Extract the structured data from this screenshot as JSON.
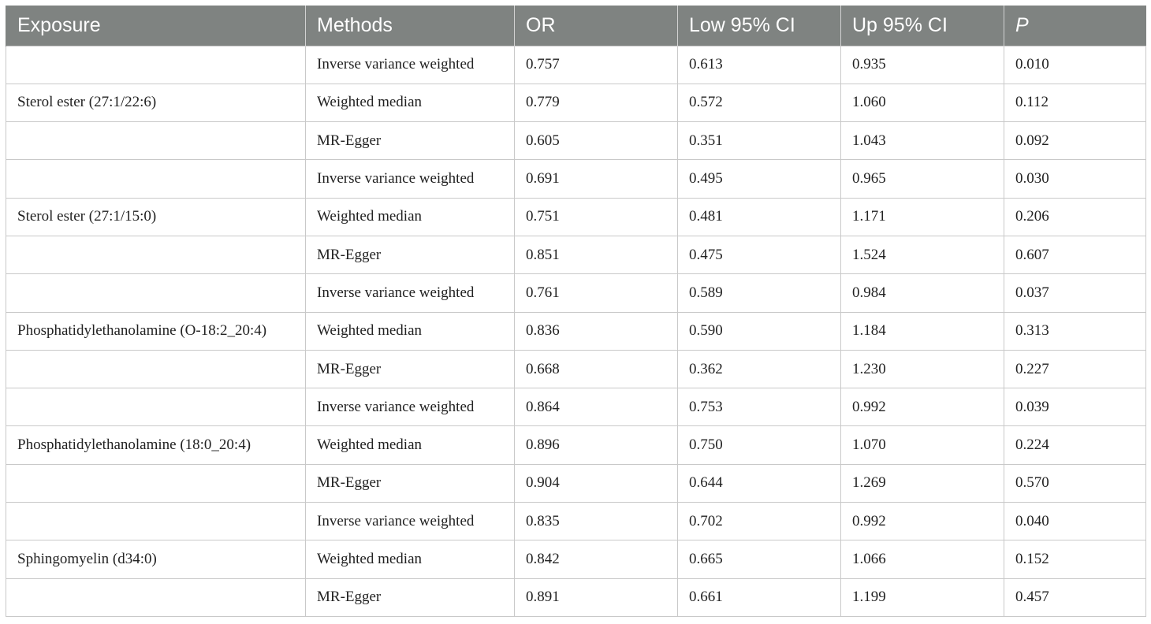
{
  "table": {
    "headers": [
      "Exposure",
      "Methods",
      "OR",
      "Low 95% CI",
      "Up 95% CI",
      "P"
    ],
    "rows": [
      [
        "",
        "Inverse variance weighted",
        "0.757",
        "0.613",
        "0.935",
        "0.010"
      ],
      [
        "Sterol ester (27:1/22:6)",
        "Weighted median",
        "0.779",
        "0.572",
        "1.060",
        "0.112"
      ],
      [
        "",
        "MR-Egger",
        "0.605",
        "0.351",
        "1.043",
        "0.092"
      ],
      [
        "",
        "Inverse variance weighted",
        "0.691",
        "0.495",
        "0.965",
        "0.030"
      ],
      [
        "Sterol ester (27:1/15:0)",
        "Weighted median",
        "0.751",
        "0.481",
        "1.171",
        "0.206"
      ],
      [
        "",
        "MR-Egger",
        "0.851",
        "0.475",
        "1.524",
        "0.607"
      ],
      [
        "",
        "Inverse variance weighted",
        "0.761",
        "0.589",
        "0.984",
        "0.037"
      ],
      [
        "Phosphatidylethanolamine (O-18:2_20:4)",
        "Weighted median",
        "0.836",
        "0.590",
        "1.184",
        "0.313"
      ],
      [
        "",
        "MR-Egger",
        "0.668",
        "0.362",
        "1.230",
        "0.227"
      ],
      [
        "",
        "Inverse variance weighted",
        "0.864",
        "0.753",
        "0.992",
        "0.039"
      ],
      [
        "Phosphatidylethanolamine (18:0_20:4)",
        "Weighted median",
        "0.896",
        "0.750",
        "1.070",
        "0.224"
      ],
      [
        "",
        "MR-Egger",
        "0.904",
        "0.644",
        "1.269",
        "0.570"
      ],
      [
        "",
        "Inverse variance weighted",
        "0.835",
        "0.702",
        "0.992",
        "0.040"
      ],
      [
        "Sphingomyelin (d34:0)",
        "Weighted median",
        "0.842",
        "0.665",
        "1.066",
        "0.152"
      ],
      [
        "",
        "MR-Egger",
        "0.891",
        "0.661",
        "1.199",
        "0.457"
      ]
    ]
  },
  "colors": {
    "header_bg": "#7f8381",
    "header_text": "#ffffff",
    "grid": "#c9c9c9"
  }
}
